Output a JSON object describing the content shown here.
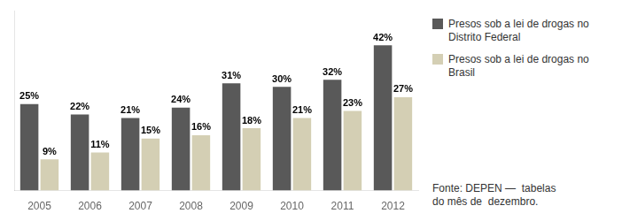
{
  "chart_data": {
    "type": "bar",
    "categories": [
      "2005",
      "2006",
      "2007",
      "2008",
      "2009",
      "2010",
      "2011",
      "2012"
    ],
    "series": [
      {
        "name": "Presos sob a lei de drogas no\nDistrito Federal",
        "color": "#595959",
        "values": [
          25,
          22,
          21,
          24,
          31,
          30,
          32,
          42
        ],
        "value_labels": [
          "25%",
          "22%",
          "21%",
          "24%",
          "31%",
          "30%",
          "32%",
          "42%"
        ]
      },
      {
        "name": "Presos sob a lei de drogas no\nBrasil",
        "color": "#d4cfb4",
        "values": [
          9,
          11,
          15,
          16,
          18,
          21,
          23,
          27
        ],
        "value_labels": [
          "9%",
          "11%",
          "15%",
          "16%",
          "18%",
          "21%",
          "23%",
          "27%"
        ]
      }
    ],
    "ylim": [
      0,
      52
    ],
    "grid": false,
    "legend": "right",
    "data_labels": true,
    "tick_labels": "x",
    "annotations": [
      "Fonte: DEPEN —  tabelas\ndo mês de  dezembro."
    ]
  }
}
